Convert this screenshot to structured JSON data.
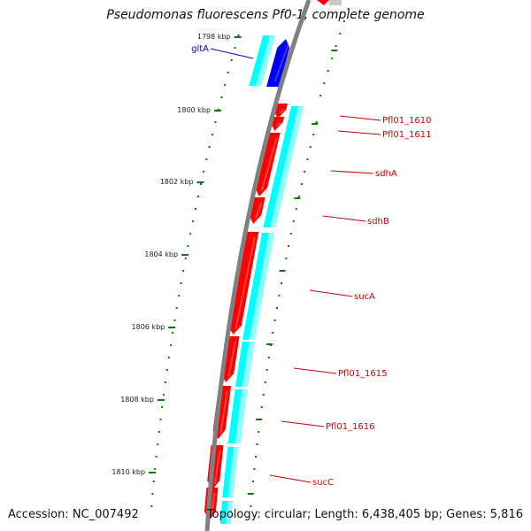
{
  "title": "Pseudomonas fluorescens Pf0-1, complete genome",
  "accession_text": "Accession: NC_007492",
  "stats_text": "Topology: circular; Length: 6,438,405 bp; Genes: 5,816",
  "colors": {
    "backbone": "#808080",
    "tick": "#0a7a0a",
    "gene_forward": "#ff0000",
    "gene_forward_light": "#ff6b6b",
    "gene_reverse": "#0000ee",
    "cds_fill": "#00ffff",
    "cds_light": "#c8ffff",
    "label_forward": "#cc0000",
    "label_reverse": "#0000cc"
  },
  "scale": {
    "unit": "kbp",
    "labels": [
      "1798 kbp",
      "1800 kbp",
      "1802 kbp",
      "1804 kbp",
      "1806 kbp",
      "1808 kbp",
      "1810 kbp"
    ]
  },
  "genes": [
    {
      "name": "gltA",
      "strand": "reverse"
    },
    {
      "name": "Pfl01_1610",
      "strand": "forward"
    },
    {
      "name": "Pfl01_1611",
      "strand": "forward"
    },
    {
      "name": "sdhA",
      "strand": "forward"
    },
    {
      "name": "sdhB",
      "strand": "forward"
    },
    {
      "name": "sucA",
      "strand": "forward"
    },
    {
      "name": "Pfl01_1615",
      "strand": "forward"
    },
    {
      "name": "Pfl01_1616",
      "strand": "forward"
    },
    {
      "name": "sucC",
      "strand": "forward"
    }
  ]
}
